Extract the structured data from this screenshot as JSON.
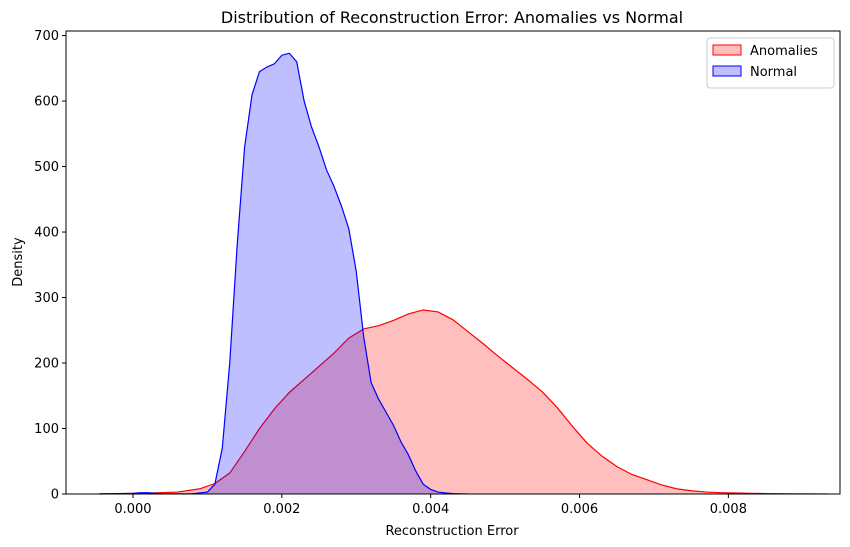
{
  "chart_data": {
    "type": "area",
    "title": "Distribution of Reconstruction Error: Anomalies vs Normal",
    "xlabel": "Reconstruction Error",
    "ylabel": "Density",
    "xlim": [
      -0.0009,
      0.0095
    ],
    "ylim": [
      0,
      707
    ],
    "xticks": [
      0.0,
      0.002,
      0.004,
      0.006,
      0.008
    ],
    "xtick_labels": [
      "0.000",
      "0.002",
      "0.004",
      "0.006",
      "0.008"
    ],
    "yticks": [
      0,
      100,
      200,
      300,
      400,
      500,
      600,
      700
    ],
    "ytick_labels": [
      "0",
      "100",
      "200",
      "300",
      "400",
      "500",
      "600",
      "700"
    ],
    "grid": false,
    "legend_position": "top-right",
    "series": [
      {
        "name": "Anomalies",
        "line_color": "#ff0000",
        "fill_color": "#ffbfbf",
        "x": [
          -0.00045,
          0.0001,
          0.0006,
          0.0009,
          0.0011,
          0.0013,
          0.0015,
          0.0017,
          0.0019,
          0.0021,
          0.0023,
          0.0025,
          0.0027,
          0.0029,
          0.0031,
          0.0033,
          0.0035,
          0.0037,
          0.0039,
          0.0041,
          0.0043,
          0.0045,
          0.0047,
          0.0049,
          0.0051,
          0.0053,
          0.0055,
          0.0057,
          0.0059,
          0.0061,
          0.0063,
          0.0065,
          0.0067,
          0.0069,
          0.0071,
          0.0073,
          0.0075,
          0.0077,
          0.0079,
          0.0081,
          0.0083,
          0.0085,
          0.0087,
          0.0089,
          0.0091,
          0.00935
        ],
        "y": [
          0.5,
          1,
          3,
          8,
          16,
          32,
          65,
          100,
          130,
          155,
          175,
          195,
          215,
          238,
          252,
          257,
          265,
          275,
          281,
          278,
          266,
          248,
          230,
          211,
          193,
          175,
          156,
          132,
          104,
          78,
          58,
          42,
          30,
          22,
          14,
          8,
          5,
          3,
          2,
          1.5,
          1,
          0.7,
          0.5,
          0.3,
          0.2,
          0.1
        ]
      },
      {
        "name": "Normal",
        "line_color": "#0000ff",
        "fill_color": "#bfbfff",
        "x": [
          -0.00045,
          0.0,
          0.0001,
          0.0002,
          0.0003,
          0.0004,
          0.0006,
          0.0008,
          0.001,
          0.0011,
          0.0012,
          0.0013,
          0.0014,
          0.0015,
          0.0016,
          0.0017,
          0.0018,
          0.0019,
          0.002,
          0.0021,
          0.0022,
          0.0023,
          0.0024,
          0.0025,
          0.0026,
          0.0027,
          0.0028,
          0.0029,
          0.003,
          0.0031,
          0.0032,
          0.0033,
          0.0034,
          0.0035,
          0.0036,
          0.0037,
          0.0038,
          0.0039,
          0.004,
          0.0041,
          0.0042,
          0.0043,
          0.0044,
          0.0045
        ],
        "y": [
          0,
          1,
          2,
          2,
          1,
          0.5,
          0.3,
          0.5,
          3,
          15,
          70,
          200,
          380,
          530,
          610,
          645,
          652,
          657,
          670,
          673,
          660,
          600,
          560,
          530,
          495,
          470,
          440,
          405,
          340,
          240,
          170,
          145,
          125,
          105,
          80,
          60,
          35,
          15,
          7,
          3,
          1.5,
          0.7,
          0.3,
          0.1
        ]
      }
    ]
  }
}
